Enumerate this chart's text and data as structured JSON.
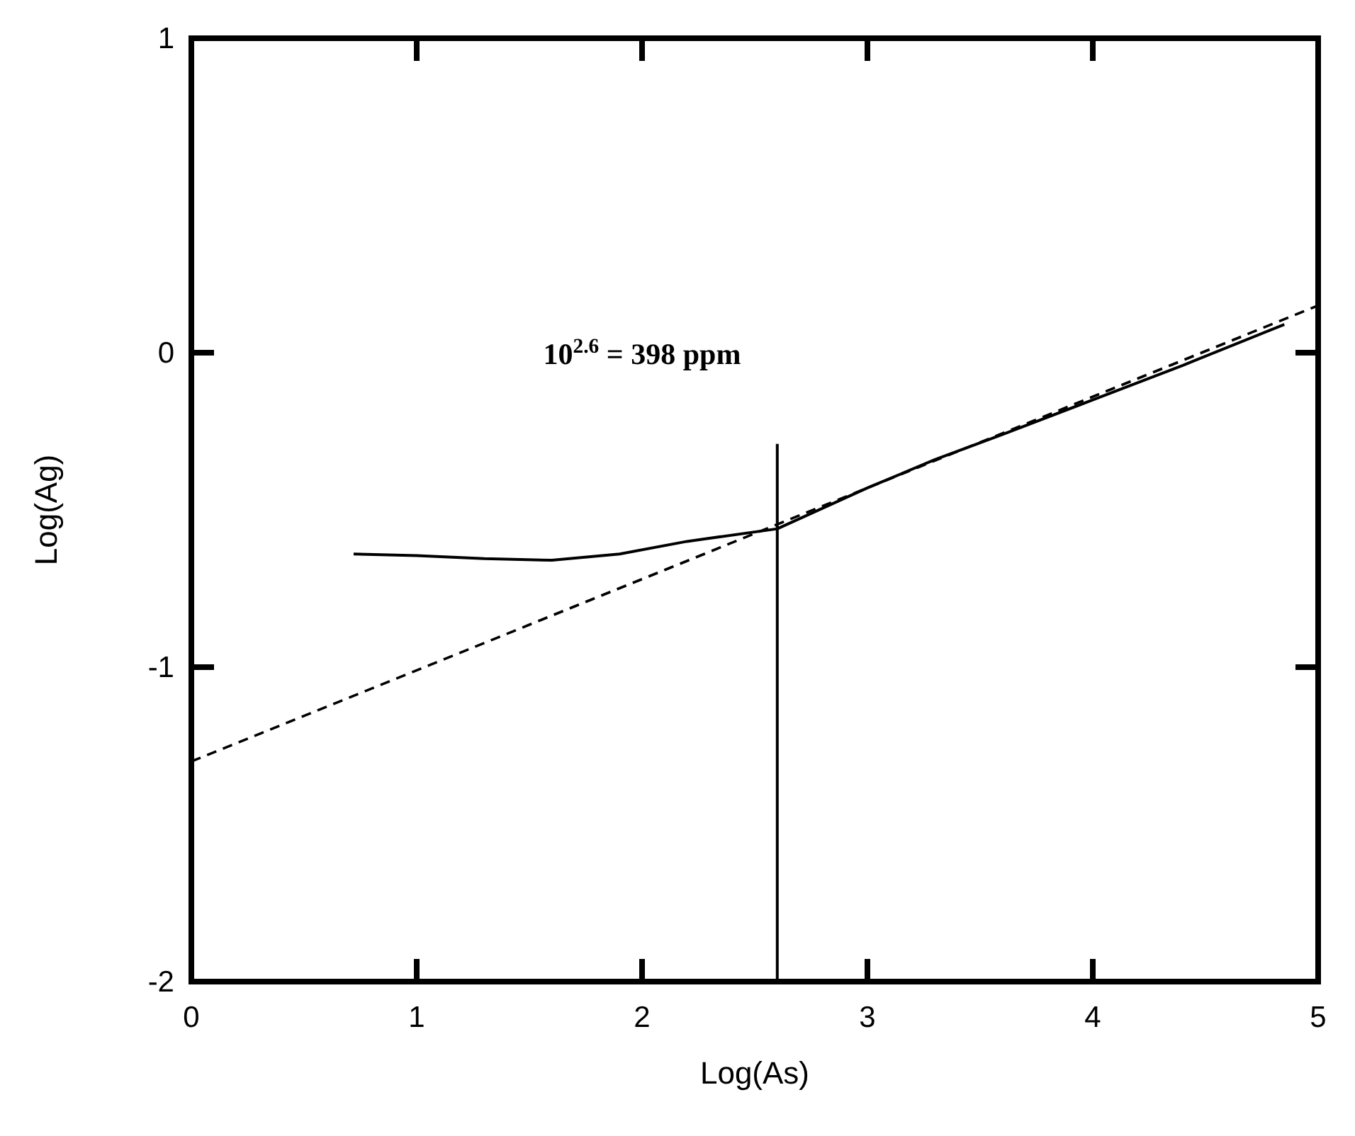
{
  "chart_data": {
    "type": "line",
    "xlabel": "Log(As)",
    "ylabel": "Log(Ag)",
    "xlim": [
      0,
      5
    ],
    "ylim": [
      -2,
      1
    ],
    "xticks": [
      0,
      1,
      2,
      3,
      4,
      5
    ],
    "yticks": [
      -2,
      -1,
      0,
      1
    ],
    "grid": false,
    "marker": "none",
    "annotations": [
      "10$^{2.6}$ = 398 ppm"
    ],
    "series": [
      {
        "color": "#000000",
        "line_style": "solid",
        "x": [
          0.72,
          1.0,
          1.3,
          1.6,
          1.9,
          2.2,
          2.6,
          3.0,
          3.3,
          3.6,
          4.0,
          4.4,
          4.85
        ],
        "values": [
          -0.64,
          -0.645,
          -0.655,
          -0.66,
          -0.64,
          -0.6,
          -0.56,
          -0.43,
          -0.34,
          -0.26,
          -0.15,
          -0.04,
          0.09
        ]
      },
      {
        "color": "#000000",
        "line_style": "dashed",
        "x": [
          0,
          5
        ],
        "values": [
          -1.3,
          0.15
        ]
      },
      {
        "color": "#000000",
        "line_style": "solid",
        "x": [
          2.6,
          2.6
        ],
        "values": [
          -2,
          -0.29
        ]
      }
    ]
  }
}
